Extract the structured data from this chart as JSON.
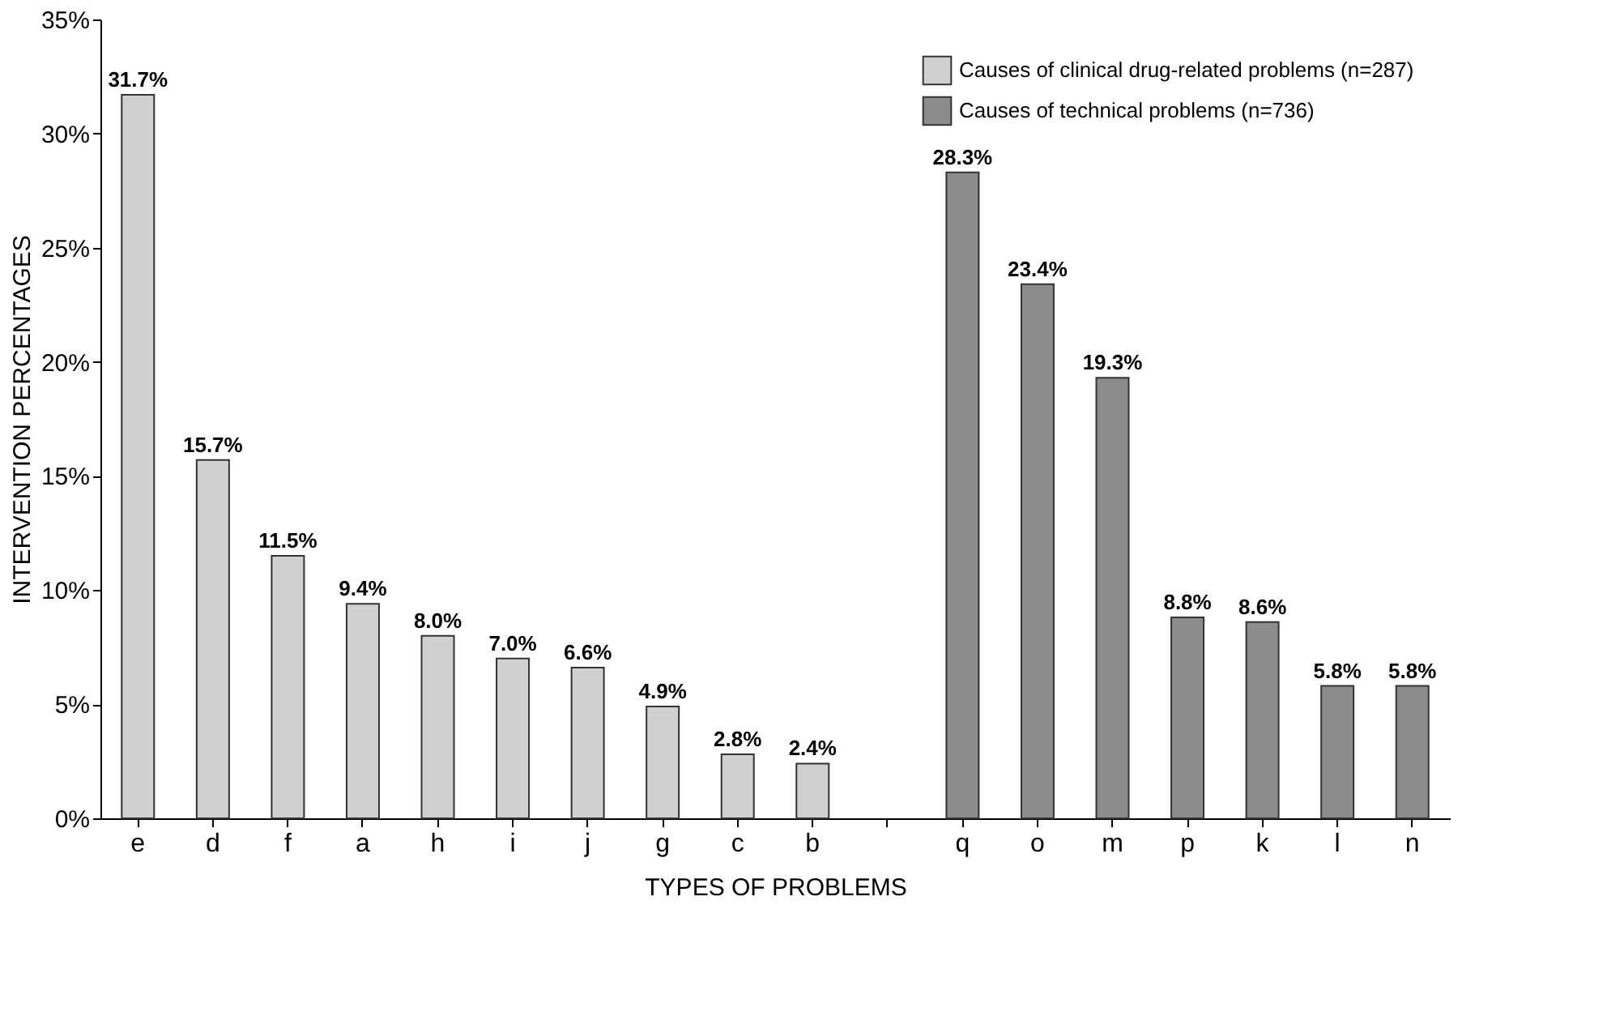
{
  "chart_data": {
    "type": "bar",
    "xlabel": "TYPES OF PROBLEMS",
    "ylabel": "INTERVENTION PERCENTAGES",
    "categories": [
      "e",
      "d",
      "f",
      "a",
      "h",
      "i",
      "j",
      "g",
      "c",
      "b",
      null,
      "q",
      "o",
      "m",
      "p",
      "k",
      "l",
      "n"
    ],
    "series": [
      {
        "name": "Causes of clinical drug-related problems (n=287)",
        "color": "#d0d0d0",
        "values": [
          31.7,
          15.7,
          11.5,
          9.4,
          8.0,
          7.0,
          6.6,
          4.9,
          2.8,
          2.4,
          null,
          null,
          null,
          null,
          null,
          null,
          null,
          null
        ],
        "value_labels": [
          "31.7%",
          "15.7%",
          "11.5%",
          "9.4%",
          "8.0%",
          "7.0%",
          "6.6%",
          "4.9%",
          "2.8%",
          "2.4%",
          null,
          null,
          null,
          null,
          null,
          null,
          null,
          null
        ]
      },
      {
        "name": "Causes of technical problems (n=736)",
        "color": "#8c8c8c",
        "values": [
          null,
          null,
          null,
          null,
          null,
          null,
          null,
          null,
          null,
          null,
          null,
          28.3,
          23.4,
          19.3,
          8.8,
          8.6,
          5.8,
          5.8
        ],
        "value_labels": [
          null,
          null,
          null,
          null,
          null,
          null,
          null,
          null,
          null,
          null,
          null,
          "28.3%",
          "23.4%",
          "19.3%",
          "8.8%",
          "8.6%",
          "5.8%",
          "5.8%"
        ]
      }
    ],
    "ylim": [
      0,
      35
    ],
    "yticks": [
      {
        "value": 0,
        "label": "0%"
      },
      {
        "value": 5,
        "label": "5%"
      },
      {
        "value": 10,
        "label": "10%"
      },
      {
        "value": 15,
        "label": "15%"
      },
      {
        "value": 20,
        "label": "20%"
      },
      {
        "value": 25,
        "label": "25%"
      },
      {
        "value": 30,
        "label": "30%"
      },
      {
        "value": 35,
        "label": "35%"
      }
    ],
    "legend": "top right",
    "grid": false
  }
}
